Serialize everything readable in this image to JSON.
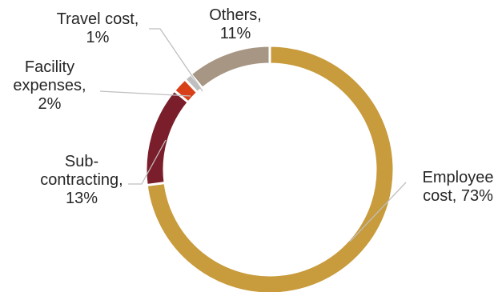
{
  "chart_data": {
    "type": "pie",
    "style": "donut",
    "slices": [
      {
        "name": "Employee cost",
        "value": 73,
        "color": "#C89B3C",
        "label_lines": [
          "Employee",
          "cost, 73%"
        ]
      },
      {
        "name": "Sub-contracting",
        "value": 13,
        "color": "#7B1E2B",
        "label_lines": [
          "Sub-",
          "contracting,",
          "13%"
        ]
      },
      {
        "name": "Facility expenses",
        "value": 2,
        "color": "#D8401A",
        "label_lines": [
          "Facility",
          "expenses,",
          "2%"
        ]
      },
      {
        "name": "Travel cost",
        "value": 1,
        "color": "#BFBFBF",
        "label_lines": [
          "Travel cost,",
          "1%"
        ]
      },
      {
        "name": "Others",
        "value": 11,
        "color": "#A89684",
        "label_lines": [
          "Others,",
          "11%"
        ]
      }
    ],
    "legend": "none",
    "data_labels": "outside with leader lines"
  }
}
